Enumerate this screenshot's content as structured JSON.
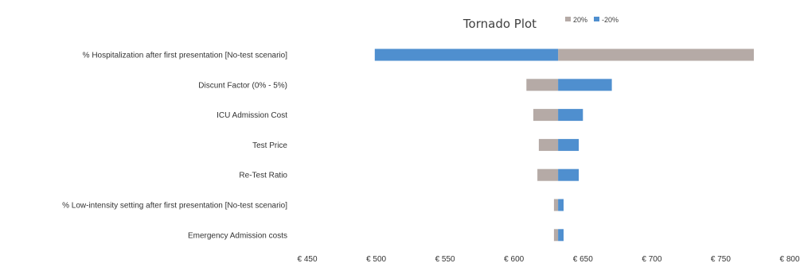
{
  "chart_data": {
    "type": "bar",
    "orientation": "horizontal",
    "subtype": "tornado",
    "title": "Tornado Plot",
    "base_value": 632,
    "categories": [
      "% Hospitalization after first presentation [No-test scenario]",
      "Discunt Factor (0% - 5%)",
      "ICU Admission Cost",
      "Test Price",
      "Re-Test Ratio",
      "% Low-intensity setting after first presentation [No-test scenario]",
      "Emergency Admission costs"
    ],
    "series": [
      {
        "name": "20%",
        "color": "#b5aaa6",
        "values": [
          774,
          609,
          614,
          618,
          617,
          629,
          629
        ]
      },
      {
        "name": "-20%",
        "color": "#4f8fcf",
        "values": [
          499,
          671,
          650,
          647,
          647,
          636,
          636
        ]
      }
    ],
    "xlim": [
      450,
      800
    ],
    "x_ticks": [
      450,
      500,
      550,
      600,
      650,
      700,
      750,
      800
    ],
    "x_tick_labels": [
      "€ 450",
      "€ 500",
      "€ 550",
      "€ 600",
      "€ 650",
      "€ 700",
      "€ 750",
      "€ 800"
    ],
    "legend_position": "top-right",
    "grid": false
  }
}
